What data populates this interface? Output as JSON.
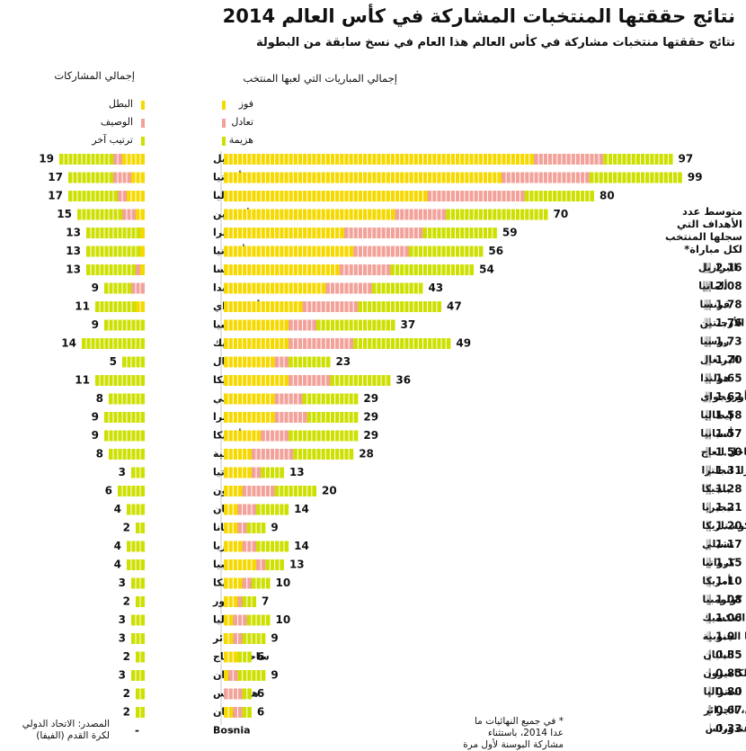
{
  "title": "نتائج حققتها المنتخبات المشاركة في كأس العالم 2014",
  "subtitle": "نتائج حققتها منتخبات مشاركة في كأس العالم هذا العام في نسخ سابقة من البطولة",
  "colors": {
    "win": "#f5d900",
    "champion": "#f5d900",
    "draw": "#f2a29a",
    "runner_up": "#f2a29a",
    "loss": "#cde000",
    "other": "#cde000",
    "avg_bar": "#a9a9a9"
  },
  "headers": {
    "participations": "إجمالي المشاركات",
    "matches": "إجمالي المباريات التي لعبها المنتخب",
    "avg_goals": "متوسط عدد الأهداف التي سجلها المنتخب لكل مباراة*"
  },
  "legend_participations": [
    {
      "label": "البطل",
      "color_key": "champion"
    },
    {
      "label": "الوصيف",
      "color_key": "runner_up"
    },
    {
      "label": "ترتيب آخر",
      "color_key": "other"
    }
  ],
  "legend_matches": [
    {
      "label": "فوز",
      "color_key": "win"
    },
    {
      "label": "تعادل",
      "color_key": "draw"
    },
    {
      "label": "هزيمة",
      "color_key": "loss"
    }
  ],
  "chart_data": [
    {
      "type": "bar",
      "name": "matches",
      "categories": [
        "البرازيل",
        "ألمانيا",
        "إيطاليا",
        "الأرجنتين",
        "انجلترا",
        "أسبانيا",
        "فرنسا",
        "هولندا",
        "أوروجواي",
        "روسيا",
        "المكسيك",
        "البرتغال",
        "بلجيكا",
        "تشيلي",
        "سويسرا",
        "أمريكا",
        "كوريا الجنوبية",
        "كرواتيا",
        "الكاميرون",
        "اليابان",
        "غانا",
        "نيجيريا",
        "كولومبيا",
        "كوستاريكا",
        "الإكوادور",
        "استراليا",
        "الجزائر",
        "ساحل العاج",
        "إيران",
        "هندوراس",
        "اليونان",
        "Bosnia"
      ],
      "series": [
        {
          "name": "فوز",
          "values": [
            67,
            60,
            44,
            37,
            26,
            28,
            25,
            22,
            17,
            14,
            14,
            11,
            14,
            11,
            11,
            8,
            6,
            6,
            4,
            3,
            3,
            4,
            7,
            4,
            3,
            2,
            2,
            3,
            1,
            0,
            2,
            null
          ]
        },
        {
          "name": "تعادل",
          "values": [
            15,
            19,
            21,
            11,
            17,
            12,
            11,
            10,
            12,
            6,
            14,
            3,
            9,
            6,
            7,
            6,
            9,
            2,
            7,
            4,
            2,
            3,
            2,
            2,
            1,
            3,
            2,
            0,
            2,
            4,
            2,
            null
          ]
        },
        {
          "name": "هزيمة",
          "values": [
            15,
            20,
            15,
            22,
            16,
            16,
            18,
            11,
            18,
            17,
            21,
            9,
            13,
            12,
            11,
            15,
            13,
            5,
            9,
            7,
            4,
            7,
            4,
            4,
            3,
            5,
            5,
            3,
            6,
            2,
            2,
            null
          ]
        }
      ],
      "totals": [
        97,
        99,
        80,
        70,
        59,
        56,
        54,
        43,
        47,
        37,
        49,
        23,
        36,
        29,
        29,
        29,
        28,
        13,
        20,
        14,
        9,
        14,
        13,
        10,
        7,
        10,
        9,
        6,
        9,
        6,
        6,
        "-"
      ]
    },
    {
      "type": "bar",
      "name": "participations",
      "categories": [
        "البرازيل",
        "ألمانيا",
        "إيطاليا",
        "الأرجنتين",
        "انجلترا",
        "أسبانيا",
        "فرنسا",
        "هولندا",
        "أوروجواي",
        "روسيا",
        "المكسيك",
        "البرتغال",
        "بلجيكا",
        "تشيلي",
        "سويسرا",
        "أمريكا",
        "كوريا الجنوبية",
        "كرواتيا",
        "الكاميرون",
        "اليابان",
        "غانا",
        "نيجيريا",
        "كولومبيا",
        "كوستاريكا",
        "الإكوادور",
        "استراليا",
        "الجزائر",
        "ساحل العاج",
        "إيران",
        "هندوراس",
        "اليونان",
        "Bosnia"
      ],
      "series": [
        {
          "name": "البطل",
          "values": [
            5,
            3,
            4,
            2,
            1,
            1,
            1,
            0,
            2,
            0,
            0,
            0,
            0,
            0,
            0,
            0,
            0,
            0,
            0,
            0,
            0,
            0,
            0,
            0,
            0,
            0,
            0,
            0,
            0,
            0,
            0,
            null
          ]
        },
        {
          "name": "الوصيف",
          "values": [
            2,
            4,
            2,
            3,
            0,
            0,
            1,
            3,
            0,
            0,
            0,
            0,
            0,
            0,
            0,
            0,
            0,
            0,
            0,
            0,
            0,
            0,
            0,
            0,
            0,
            0,
            0,
            0,
            0,
            0,
            0,
            null
          ]
        },
        {
          "name": "ترتيب آخر",
          "values": [
            12,
            10,
            11,
            10,
            12,
            12,
            11,
            6,
            9,
            9,
            14,
            5,
            11,
            8,
            9,
            9,
            8,
            3,
            6,
            4,
            2,
            4,
            4,
            3,
            2,
            3,
            3,
            2,
            3,
            2,
            2,
            null
          ]
        }
      ],
      "totals": [
        19,
        17,
        17,
        15,
        13,
        13,
        13,
        9,
        11,
        9,
        14,
        5,
        11,
        8,
        9,
        9,
        8,
        3,
        6,
        4,
        2,
        4,
        4,
        3,
        2,
        3,
        3,
        2,
        3,
        2,
        2,
        "-"
      ]
    },
    {
      "type": "bar",
      "name": "avg_goals",
      "categories": [
        "البرازيل",
        "ألمانيا",
        "فرنسا",
        "الأرجنتين",
        "روسيا",
        "البرتغال",
        "هولندا",
        "أوروجواي",
        "إيطاليا",
        "أسبانيا",
        "ساحل العاج",
        "سويسرا، انجلترا",
        "بلجيكا",
        "نيجيريا",
        "كوستاريكا",
        "تشيلي",
        "كرواتيا",
        "أمريكا",
        "كولومبيا",
        "المكسيك",
        "الإكوادور، غانا، كوريا الجنوبية",
        "اليابان",
        "الكاميرون",
        "استراليا",
        "إيران، الجزائر",
        "اليونان، هندوراس"
      ],
      "value_labels": [
        "2.16",
        "2.08",
        "1.78",
        "1.76",
        "1.73",
        "1.70",
        "1.65",
        "1.62",
        "1.58",
        "1.57",
        "1.50",
        "1.31",
        "1.28",
        "1.21",
        "1.20",
        "1.17",
        "1.15",
        "1.10",
        "1.08",
        "1.06",
        "1.0",
        "0.85",
        "0.85",
        "0.80",
        "0.67",
        "0.33"
      ],
      "values": [
        2.16,
        2.08,
        1.78,
        1.76,
        1.73,
        1.7,
        1.65,
        1.62,
        1.58,
        1.57,
        1.5,
        1.31,
        1.28,
        1.21,
        1.2,
        1.17,
        1.15,
        1.1,
        1.08,
        1.06,
        1.0,
        0.85,
        0.85,
        0.8,
        0.67,
        0.33
      ]
    }
  ],
  "footnotes": {
    "source": "المصدر: الاتحاد الدولي لكرة القدم (الفيفا)",
    "note": "* في جميع النهائيات ما عدا 2014، باستثناء مشاركة البوسنة لأول مرة"
  }
}
